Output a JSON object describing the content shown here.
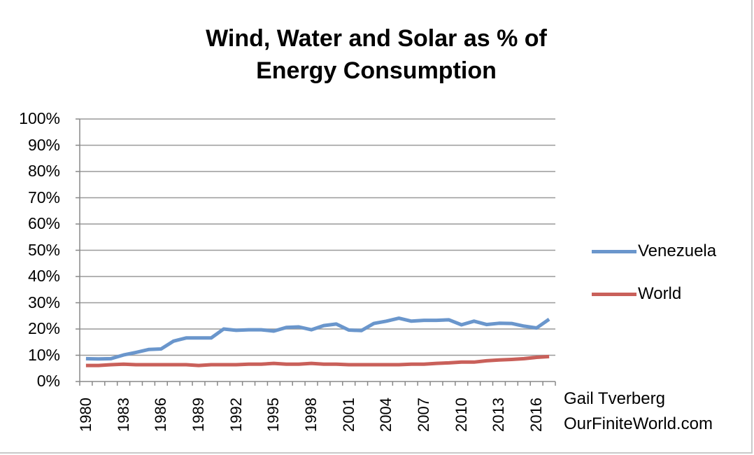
{
  "title_lines": [
    "Wind, Water and Solar as % of",
    "Energy Consumption"
  ],
  "credit": [
    "Gail Tverberg",
    "OurFiniteWorld.com"
  ],
  "colors": {
    "venezuela": "#6a96cc",
    "world": "#c9605a",
    "grid": "#9a9a9a",
    "axis": "#888888"
  },
  "chart_data": {
    "type": "line",
    "title": "Wind, Water and Solar as % of Energy Consumption",
    "xlabel": "",
    "ylabel": "",
    "ylim": [
      0,
      100
    ],
    "y_ticks": [
      "0%",
      "10%",
      "20%",
      "30%",
      "40%",
      "50%",
      "60%",
      "70%",
      "80%",
      "90%",
      "100%"
    ],
    "x": [
      1980,
      1981,
      1982,
      1983,
      1984,
      1985,
      1986,
      1987,
      1988,
      1989,
      1990,
      1991,
      1992,
      1993,
      1994,
      1995,
      1996,
      1997,
      1998,
      1999,
      2000,
      2001,
      2002,
      2003,
      2004,
      2005,
      2006,
      2007,
      2008,
      2009,
      2010,
      2011,
      2012,
      2013,
      2014,
      2015,
      2016,
      2017
    ],
    "x_tick_labels": [
      "1980",
      "1983",
      "1986",
      "1989",
      "1992",
      "1995",
      "1998",
      "2001",
      "2004",
      "2007",
      "2010",
      "2013",
      "2016"
    ],
    "x_tick_values": [
      1980,
      1983,
      1986,
      1989,
      1992,
      1995,
      1998,
      2001,
      2004,
      2007,
      2010,
      2013,
      2016
    ],
    "grid": true,
    "legend_position": "right",
    "series": [
      {
        "name": "Venezuela",
        "values": [
          8.7,
          8.6,
          8.7,
          10.1,
          11.1,
          12.2,
          12.4,
          15.4,
          16.6,
          16.6,
          16.6,
          20.0,
          19.5,
          19.7,
          19.7,
          19.2,
          20.6,
          20.8,
          19.7,
          21.3,
          21.9,
          19.6,
          19.4,
          22.1,
          23.0,
          24.1,
          23.0,
          23.3,
          23.3,
          23.5,
          21.6,
          23.0,
          21.7,
          22.2,
          22.1,
          21.1,
          20.4,
          23.7
        ]
      },
      {
        "name": "World",
        "values": [
          6.1,
          6.1,
          6.4,
          6.6,
          6.4,
          6.4,
          6.4,
          6.4,
          6.4,
          6.1,
          6.4,
          6.4,
          6.4,
          6.6,
          6.6,
          6.9,
          6.6,
          6.6,
          6.9,
          6.6,
          6.6,
          6.4,
          6.4,
          6.4,
          6.4,
          6.4,
          6.6,
          6.6,
          6.9,
          7.1,
          7.4,
          7.4,
          7.9,
          8.2,
          8.4,
          8.7,
          9.2,
          9.5
        ]
      }
    ]
  }
}
